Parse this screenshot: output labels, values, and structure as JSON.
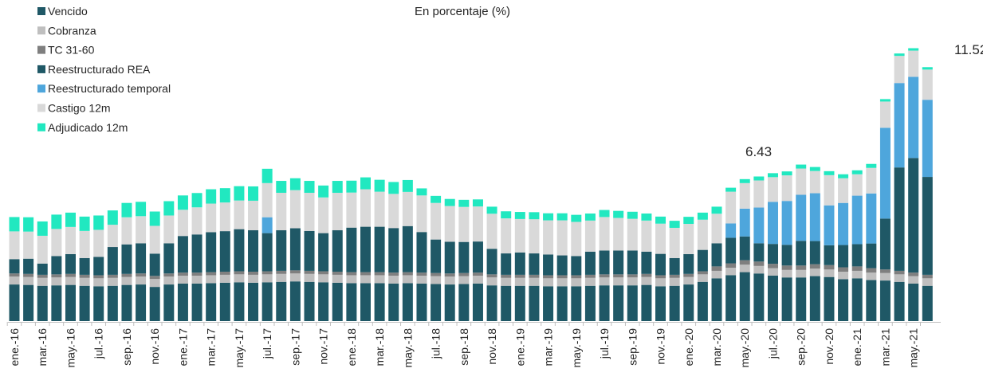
{
  "chart_data": {
    "type": "stacked_bar",
    "title": "En porcentaje (%)",
    "categories": [
      "ene.-16",
      null,
      "mar.-16",
      null,
      "may.-16",
      null,
      "jul.-16",
      null,
      "sep.-16",
      null,
      "nov.-16",
      null,
      "ene.-17",
      null,
      "mar.-17",
      null,
      "may.-17",
      null,
      "jul.-17",
      null,
      "sep.-17",
      null,
      "nov.-17",
      null,
      "ene.-18",
      null,
      "mar.-18",
      null,
      "may.-18",
      null,
      "jul.-18",
      null,
      "sep.-18",
      null,
      "nov.-18",
      null,
      "ene.-19",
      null,
      "mar.-19",
      null,
      "may.-19",
      null,
      "jul.-19",
      null,
      "sep.-19",
      null,
      "nov.-19",
      null,
      "ene.-20",
      null,
      "mar.-20",
      null,
      "may.-20",
      null,
      "jul.-20",
      null,
      "sep.-20",
      null,
      "nov.-20",
      null,
      "ene.-21",
      null,
      "mar.-21",
      null,
      "may.-21",
      null
    ],
    "series": [
      {
        "name": "Vencido",
        "color": "#1f5866",
        "values": [
          1.66,
          1.64,
          1.6,
          1.62,
          1.64,
          1.6,
          1.58,
          1.6,
          1.64,
          1.66,
          1.55,
          1.66,
          1.7,
          1.7,
          1.72,
          1.74,
          1.76,
          1.74,
          1.76,
          1.78,
          1.8,
          1.78,
          1.76,
          1.74,
          1.72,
          1.72,
          1.72,
          1.7,
          1.72,
          1.7,
          1.68,
          1.66,
          1.68,
          1.7,
          1.62,
          1.6,
          1.6,
          1.6,
          1.58,
          1.58,
          1.58,
          1.6,
          1.62,
          1.62,
          1.62,
          1.64,
          1.58,
          1.6,
          1.66,
          1.78,
          1.94,
          2.08,
          2.22,
          2.16,
          2.06,
          1.98,
          1.98,
          2.04,
          2.0,
          1.9,
          1.94,
          1.86,
          1.84,
          1.78,
          1.7,
          1.6
        ]
      },
      {
        "name": "Cobranza",
        "color": "#bfbfbf",
        "values": [
          0.36,
          0.36,
          0.36,
          0.36,
          0.36,
          0.36,
          0.36,
          0.36,
          0.36,
          0.36,
          0.36,
          0.36,
          0.36,
          0.36,
          0.36,
          0.36,
          0.36,
          0.36,
          0.36,
          0.36,
          0.36,
          0.36,
          0.36,
          0.36,
          0.36,
          0.36,
          0.36,
          0.36,
          0.36,
          0.36,
          0.36,
          0.36,
          0.36,
          0.36,
          0.36,
          0.36,
          0.36,
          0.36,
          0.36,
          0.36,
          0.36,
          0.36,
          0.36,
          0.36,
          0.36,
          0.36,
          0.36,
          0.36,
          0.34,
          0.34,
          0.34,
          0.34,
          0.34,
          0.34,
          0.34,
          0.34,
          0.34,
          0.34,
          0.34,
          0.34,
          0.34,
          0.34,
          0.34,
          0.34,
          0.34,
          0.34
        ]
      },
      {
        "name": "TC 31-60",
        "color": "#7f7f7f",
        "values": [
          0.14,
          0.14,
          0.14,
          0.14,
          0.14,
          0.14,
          0.14,
          0.14,
          0.14,
          0.14,
          0.14,
          0.14,
          0.14,
          0.14,
          0.14,
          0.14,
          0.14,
          0.14,
          0.14,
          0.14,
          0.14,
          0.14,
          0.14,
          0.14,
          0.14,
          0.14,
          0.14,
          0.14,
          0.14,
          0.14,
          0.14,
          0.14,
          0.14,
          0.14,
          0.14,
          0.14,
          0.14,
          0.14,
          0.14,
          0.14,
          0.14,
          0.14,
          0.14,
          0.14,
          0.14,
          0.14,
          0.14,
          0.14,
          0.14,
          0.14,
          0.2,
          0.2,
          0.2,
          0.2,
          0.2,
          0.2,
          0.2,
          0.2,
          0.2,
          0.2,
          0.2,
          0.2,
          0.16,
          0.16,
          0.16,
          0.16
        ]
      },
      {
        "name": "Reestructurado REA",
        "color": "#1f5866",
        "values": [
          0.65,
          0.69,
          0.51,
          0.83,
          0.9,
          0.76,
          0.83,
          1.26,
          1.34,
          1.37,
          1.01,
          1.37,
          1.66,
          1.73,
          1.81,
          1.84,
          1.91,
          1.88,
          1.73,
          1.84,
          1.91,
          1.81,
          1.73,
          1.88,
          2.02,
          2.06,
          2.06,
          2.02,
          2.09,
          1.84,
          1.52,
          1.44,
          1.41,
          1.41,
          1.16,
          0.97,
          1.01,
          0.97,
          0.94,
          0.9,
          0.87,
          1.05,
          1.08,
          1.08,
          1.08,
          1.01,
          0.97,
          0.76,
          0.9,
          0.97,
          1.05,
          1.16,
          1.08,
          0.83,
          0.9,
          0.94,
          1.12,
          1.05,
          0.9,
          1.01,
          1.01,
          1.12,
          2.31,
          4.69,
          5.2,
          4.44
        ]
      },
      {
        "name": "Reestructurado temporal",
        "color": "#4ea6dc",
        "values": [
          0,
          0,
          0,
          0,
          0,
          0,
          0,
          0,
          0,
          0,
          0,
          0,
          0,
          0,
          0,
          0,
          0,
          0,
          0.72,
          0,
          0,
          0,
          0,
          0,
          0,
          0,
          0,
          0,
          0,
          0,
          0,
          0,
          0,
          0,
          0,
          0,
          0,
          0,
          0,
          0,
          0,
          0,
          0,
          0,
          0,
          0,
          0,
          0,
          0,
          0,
          0,
          0.65,
          1.26,
          1.62,
          1.91,
          1.99,
          2.09,
          2.17,
          1.81,
          1.91,
          2.2,
          2.27,
          4.12,
          3.83,
          3.68,
          3.5
        ]
      },
      {
        "name": "Castigo 12m",
        "color": "#d9d9d9",
        "values": [
          1.26,
          1.23,
          1.26,
          1.23,
          1.23,
          1.23,
          1.23,
          1.01,
          1.23,
          1.23,
          1.26,
          1.26,
          1.19,
          1.23,
          1.3,
          1.3,
          1.3,
          1.34,
          1.55,
          1.7,
          1.73,
          1.73,
          1.62,
          1.7,
          1.59,
          1.7,
          1.59,
          1.55,
          1.55,
          1.66,
          1.66,
          1.62,
          1.59,
          1.59,
          1.59,
          1.59,
          1.52,
          1.55,
          1.55,
          1.59,
          1.55,
          1.41,
          1.52,
          1.48,
          1.44,
          1.41,
          1.37,
          1.37,
          1.37,
          1.37,
          1.34,
          1.44,
          1.16,
          1.23,
          1.12,
          1.16,
          1.19,
          1.01,
          1.37,
          1.12,
          0.97,
          1.16,
          1.19,
          1.23,
          1.19,
          1.37
        ]
      },
      {
        "name": "Adjudicado 12m",
        "color": "#21e8c0",
        "values": [
          0.65,
          0.65,
          0.65,
          0.65,
          0.65,
          0.65,
          0.65,
          0.65,
          0.65,
          0.65,
          0.65,
          0.65,
          0.65,
          0.65,
          0.65,
          0.65,
          0.65,
          0.65,
          0.65,
          0.54,
          0.54,
          0.54,
          0.54,
          0.54,
          0.54,
          0.54,
          0.54,
          0.54,
          0.54,
          0.32,
          0.32,
          0.32,
          0.32,
          0.32,
          0.32,
          0.32,
          0.32,
          0.32,
          0.32,
          0.32,
          0.32,
          0.32,
          0.32,
          0.32,
          0.32,
          0.32,
          0.32,
          0.32,
          0.32,
          0.32,
          0.32,
          0.18,
          0.18,
          0.18,
          0.18,
          0.18,
          0.18,
          0.18,
          0.18,
          0.18,
          0.18,
          0.18,
          0.11,
          0.11,
          0.11,
          0.11
        ]
      }
    ],
    "annotations": [
      "6.43",
      "11.52"
    ],
    "ylim": [
      0,
      12
    ],
    "legend": "top-left"
  }
}
